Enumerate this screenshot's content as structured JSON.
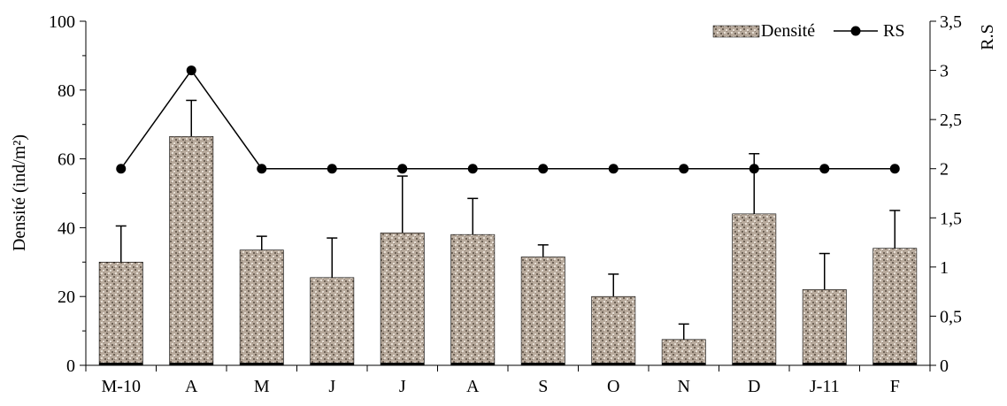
{
  "chart_data": {
    "type": "bar",
    "categories": [
      "M-10",
      "A",
      "M",
      "J",
      "J",
      "A",
      "S",
      "O",
      "N",
      "D",
      "J-11",
      "F"
    ],
    "series": [
      {
        "name": "Densité",
        "type": "bar",
        "axis": "left",
        "values": [
          30,
          66.5,
          33.5,
          25.5,
          38.5,
          38,
          31.5,
          20,
          7.5,
          44,
          22,
          34
        ],
        "errors": [
          10.5,
          10.5,
          4,
          11.5,
          16.5,
          10.5,
          3.5,
          6.5,
          4.5,
          17.5,
          10.5,
          11
        ]
      },
      {
        "name": "RS",
        "type": "line",
        "axis": "right",
        "values": [
          2,
          3,
          2,
          2,
          2,
          2,
          2,
          2,
          2,
          2,
          2,
          2
        ]
      }
    ],
    "ylabel": "Densité (ind/m²)",
    "y2label": "R.S",
    "ylim": [
      0,
      100
    ],
    "y2lim": [
      0,
      3.5
    ],
    "yticks": [
      "0",
      "20",
      "40",
      "60",
      "80",
      "100"
    ],
    "y2ticks": [
      "0",
      "0,5",
      "1",
      "1,5",
      "2",
      "2,5",
      "3",
      "3,5"
    ],
    "legend_position": "top-right",
    "grid": false,
    "colors": {
      "bar_fill": "#b8aa9c",
      "bar_speckle_dark": "#6e6256",
      "bar_speckle_light": "#e6ded4",
      "line": "#000000",
      "marker": "#000000"
    }
  }
}
